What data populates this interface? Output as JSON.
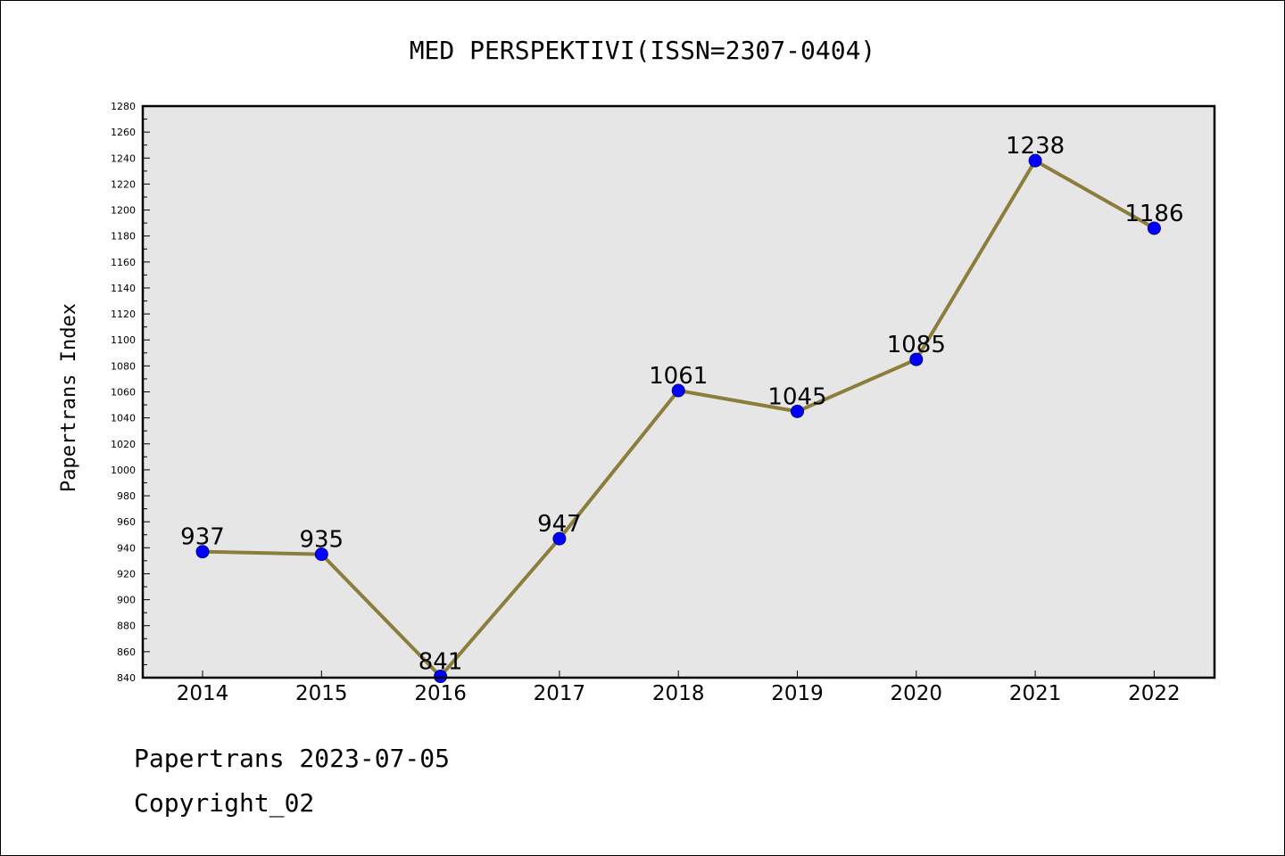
{
  "chart_data": {
    "type": "line",
    "title": "MED PERSPEKTIVI(ISSN=2307-0404)",
    "xlabel": "",
    "ylabel": "Papertrans Index",
    "categories": [
      "2014",
      "2015",
      "2016",
      "2017",
      "2018",
      "2019",
      "2020",
      "2021",
      "2022"
    ],
    "series": [
      {
        "values": [
          937,
          935,
          841,
          947,
          1061,
          1045,
          1085,
          1238,
          1186
        ]
      }
    ],
    "ylim": [
      840,
      1280
    ],
    "yticks": [
      840,
      860,
      880,
      900,
      920,
      940,
      960,
      980,
      1000,
      1020,
      1040,
      1060,
      1080,
      1100,
      1120,
      1140,
      1160,
      1180,
      1200,
      1220,
      1240,
      1260,
      1280
    ],
    "grid": false,
    "legend": "none",
    "colors": {
      "line": "#8c7d3c",
      "marker": "#0000ff",
      "plot_bg": "#e6e6e6"
    }
  },
  "footer": {
    "line1": "Papertrans 2023-07-05",
    "line2": "Copyright_02"
  }
}
